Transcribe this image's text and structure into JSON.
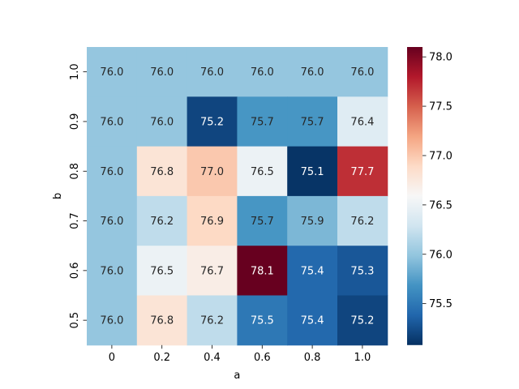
{
  "chart_data": {
    "type": "heatmap",
    "title": "",
    "xlabel": "a",
    "ylabel": "b",
    "x_categories": [
      "0",
      "0.2",
      "0.4",
      "0.6",
      "0.8",
      "1.0"
    ],
    "y_categories": [
      "1.0",
      "0.9",
      "0.8",
      "0.7",
      "0.6",
      "0.5"
    ],
    "values": [
      [
        76.0,
        76.0,
        76.0,
        76.0,
        76.0,
        76.0
      ],
      [
        76.0,
        76.0,
        75.2,
        75.7,
        75.7,
        76.4
      ],
      [
        76.0,
        76.8,
        77.0,
        76.5,
        75.1,
        77.7
      ],
      [
        76.0,
        76.2,
        76.9,
        75.7,
        75.9,
        76.2
      ],
      [
        76.0,
        76.5,
        76.7,
        78.1,
        75.4,
        75.3
      ],
      [
        76.0,
        76.8,
        76.2,
        75.5,
        75.4,
        75.2
      ]
    ],
    "annotation_format": "0.1f",
    "colormap": "RdBu_r",
    "colorbar": {
      "min": 75.08,
      "max": 78.1,
      "ticks": [
        75.5,
        76.0,
        76.5,
        77.0,
        77.5,
        78.0
      ],
      "tick_labels": [
        "75.5",
        "76.0",
        "76.5",
        "77.0",
        "77.5",
        "78.0"
      ]
    }
  }
}
